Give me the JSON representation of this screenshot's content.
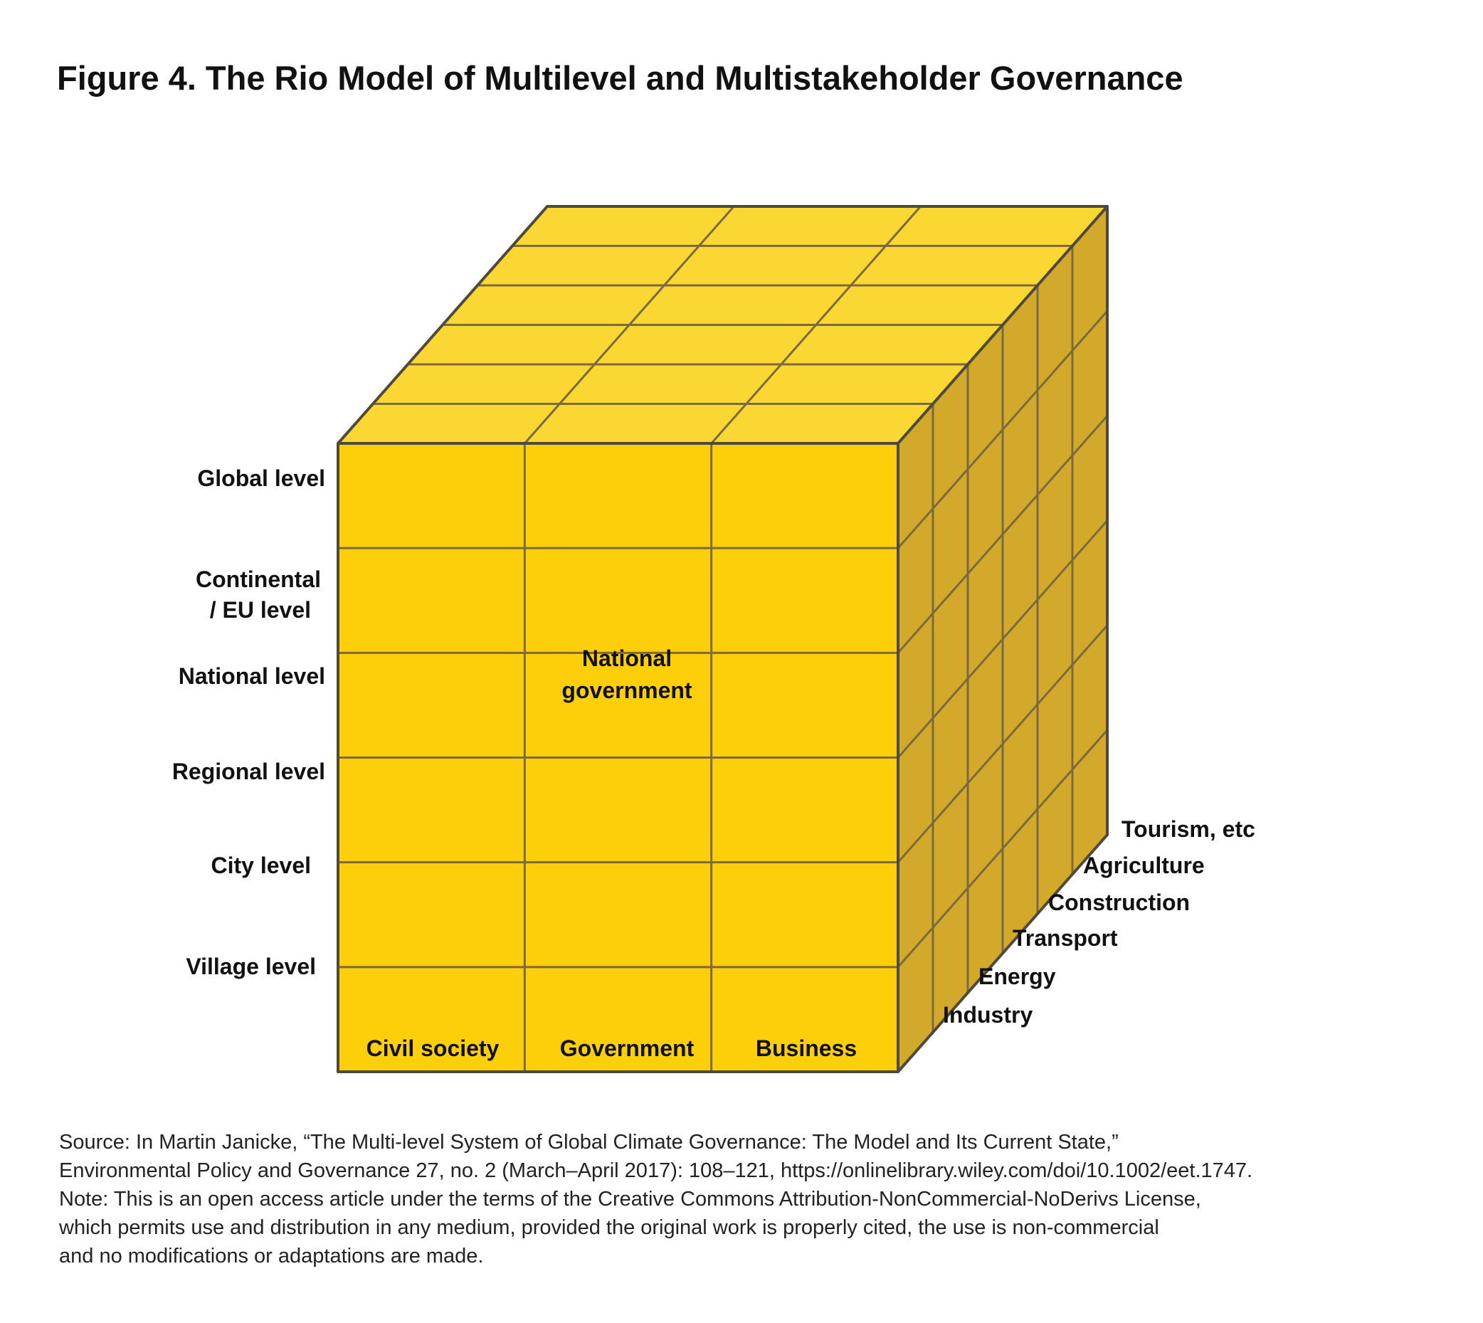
{
  "title": "Figure 4. The Rio Model of Multilevel and Multistakeholder Governance",
  "levels": [
    "Global level",
    "Continental",
    "/ EU level",
    "National level",
    "Regional level",
    "City level",
    "Village level"
  ],
  "stakeholders": [
    "Civil society",
    "Government",
    "Business"
  ],
  "sectors": [
    "Industry",
    "Energy",
    "Transport",
    "Construction",
    "Agriculture",
    "Tourism, etc"
  ],
  "center_cell": [
    "National",
    "government"
  ],
  "colors": {
    "front": "#FDCF0A",
    "top": "#FBD733",
    "side": "#D3A92C",
    "grid": "#7B6A3C",
    "edge": "#4F4A3A"
  },
  "source_lines": [
    "Source: In Martin Janicke, “The Multi-level System of Global Climate Governance: The Model and Its Current State,”",
    "Environmental Policy and Governance 27, no. 2 (March–April 2017): 108–121, https://onlinelibrary.wiley.com/doi/10.1002/eet.1747.",
    "Note: This is an open access article under the terms of the Creative Commons Attribution-NonCommercial-NoDerivs License,",
    "which permits use and distribution in any medium, provided the original work is properly cited, the use is non-commercial",
    "and no modifications or adaptations are made."
  ]
}
